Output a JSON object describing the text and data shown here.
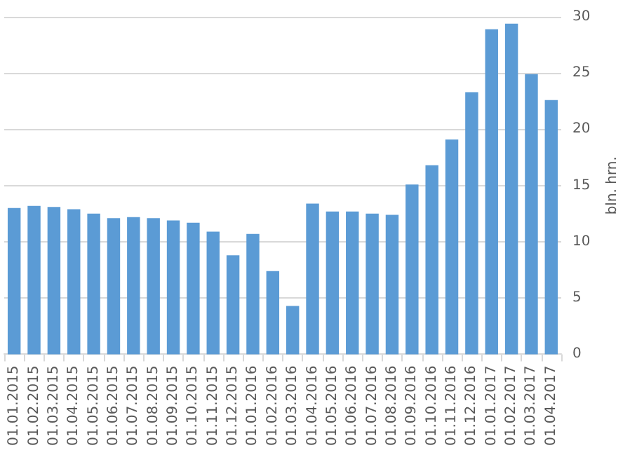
{
  "chart_data": {
    "type": "bar",
    "ylabel": "bln. hrn.",
    "categories": [
      "01.01.2015",
      "01.02.2015",
      "01.03.2015",
      "01.04.2015",
      "01.05.2015",
      "01.06.2015",
      "01.07.2015",
      "01.08.2015",
      "01.09.2015",
      "01.10.2015",
      "01.11.2015",
      "01.12.2015",
      "01.01.2016",
      "01.02.2016",
      "01.03.2016",
      "01.04.2016",
      "01.05.2016",
      "01.06.2016",
      "01.07.2016",
      "01.08.2016",
      "01.09.2016",
      "01.10.2016",
      "01.11.2016",
      "01.12.2016",
      "01.01.2017",
      "01.02.2017",
      "01.03.2017",
      "01.04.2017"
    ],
    "values": [
      13.0,
      13.2,
      13.1,
      12.9,
      12.5,
      12.1,
      12.2,
      12.1,
      11.9,
      11.7,
      10.9,
      8.8,
      10.7,
      7.4,
      4.3,
      13.4,
      12.7,
      12.7,
      12.5,
      12.4,
      15.1,
      16.8,
      19.1,
      23.3,
      28.9,
      29.4,
      24.9,
      22.6
    ],
    "color": "#5b9bd5",
    "ylim": [
      0,
      30
    ],
    "yticks": [
      0,
      5,
      10,
      15,
      20,
      25,
      30
    ],
    "grid": "y"
  }
}
